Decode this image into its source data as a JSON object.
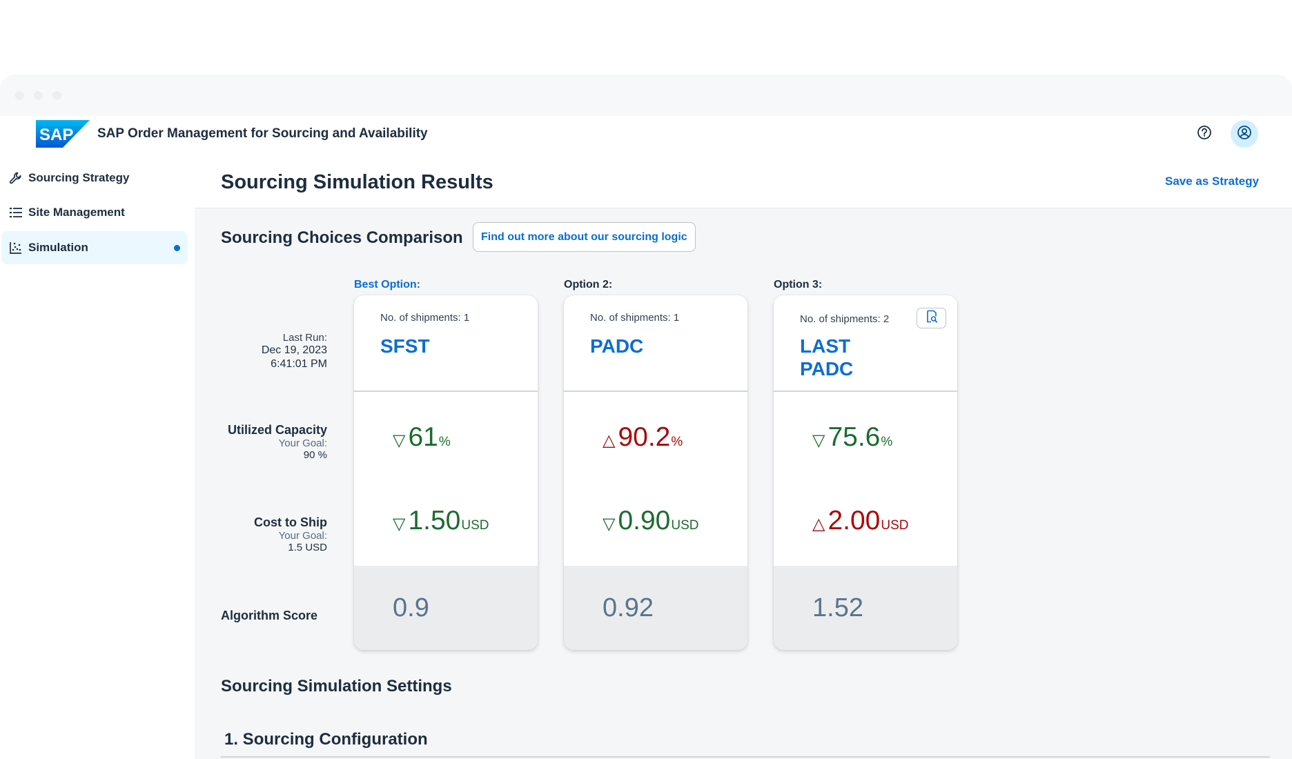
{
  "shell": {
    "app_title": "SAP Order Management for Sourcing and Availability",
    "logo_text": "SAP",
    "help_icon": "question-circle-icon",
    "avatar_icon": "user-circle-icon"
  },
  "sidebar": {
    "items": [
      {
        "label": "Sourcing Strategy",
        "icon": "wrench-icon",
        "selected": false
      },
      {
        "label": "Site Management",
        "icon": "list-icon",
        "selected": false
      },
      {
        "label": "Simulation",
        "icon": "scatter-chart-icon",
        "selected": true
      }
    ]
  },
  "header": {
    "title": "Sourcing Simulation Results",
    "save_label": "Save as Strategy"
  },
  "comparison": {
    "title": "Sourcing Choices Comparison",
    "info_button": "Find out more about our sourcing logic",
    "last_run": {
      "label": "Last Run:",
      "date": "Dec 19, 2023",
      "time": "6:41:01 PM"
    },
    "rows": {
      "capacity": {
        "label": "Utilized Capacity",
        "goal_label": "Your Goal:",
        "goal_value": "90 %"
      },
      "cost": {
        "label": "Cost to Ship",
        "goal_label": "Your Goal:",
        "goal_value": "1.5 USD"
      },
      "score": {
        "label": "Algorithm Score"
      }
    },
    "options": [
      {
        "label": "Best Option:",
        "shipments": "No. of shipments: 1",
        "sites": [
          "SFST"
        ],
        "capacity": {
          "value": "61",
          "unit": "%",
          "trend": "down",
          "status": "good"
        },
        "cost": {
          "value": "1.50",
          "unit": "USD",
          "trend": "down",
          "status": "good"
        },
        "score": "0.9"
      },
      {
        "label": "Option 2:",
        "shipments": "No. of shipments: 1",
        "sites": [
          "PADC"
        ],
        "capacity": {
          "value": "90.2",
          "unit": "%",
          "trend": "up",
          "status": "bad"
        },
        "cost": {
          "value": "0.90",
          "unit": "USD",
          "trend": "down",
          "status": "good"
        },
        "score": "0.92"
      },
      {
        "label": "Option 3:",
        "shipments": "No. of shipments: 2",
        "sites": [
          "LAST",
          "PADC"
        ],
        "details_icon": "document-search-icon",
        "capacity": {
          "value": "75.6",
          "unit": "%",
          "trend": "down",
          "status": "good"
        },
        "cost": {
          "value": "2.00",
          "unit": "USD",
          "trend": "up",
          "status": "bad"
        },
        "score": "1.52"
      }
    ],
    "colors": {
      "good": "#1b6b2e",
      "bad": "#aa0808",
      "link": "#0a6ed1"
    }
  },
  "settings": {
    "title": "Sourcing Simulation Settings",
    "section_title": "1. Sourcing Configuration"
  }
}
